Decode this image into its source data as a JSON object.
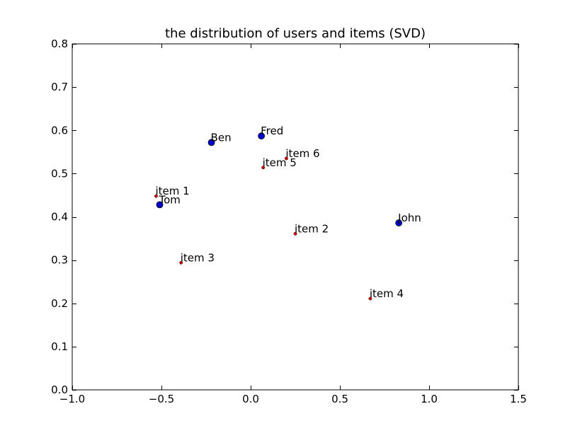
{
  "chart_data": {
    "type": "scatter",
    "title": "the distribution of users and items (SVD)",
    "xlabel": "",
    "ylabel": "",
    "xlim": [
      -1.0,
      1.5
    ],
    "ylim": [
      0.0,
      0.8
    ],
    "xticks": [
      -1.0,
      -0.5,
      0.0,
      0.5,
      1.0,
      1.5
    ],
    "xtick_labels": [
      "−1.0",
      "−0.5",
      "0.0",
      "0.5",
      "1.0",
      "1.5"
    ],
    "yticks": [
      0.0,
      0.1,
      0.2,
      0.3,
      0.4,
      0.5,
      0.6,
      0.7,
      0.8
    ],
    "ytick_labels": [
      "0.0",
      "0.1",
      "0.2",
      "0.3",
      "0.4",
      "0.5",
      "0.6",
      "0.7",
      "0.8"
    ],
    "grid": false,
    "series": [
      {
        "color": "#0000cc",
        "marker": "large-circle",
        "points": [
          {
            "label": "Ben",
            "x": -0.22,
            "y": 0.572
          },
          {
            "label": "Fred",
            "x": 0.06,
            "y": 0.587
          },
          {
            "label": "Tom",
            "x": -0.51,
            "y": 0.428
          },
          {
            "label": "John",
            "x": 0.83,
            "y": 0.386
          }
        ]
      },
      {
        "color": "#cc0000",
        "marker": "small-circle",
        "points": [
          {
            "label": "item 1",
            "x": -0.53,
            "y": 0.448
          },
          {
            "label": "item 2",
            "x": 0.25,
            "y": 0.361
          },
          {
            "label": "item 3",
            "x": -0.39,
            "y": 0.294
          },
          {
            "label": "item 4",
            "x": 0.67,
            "y": 0.211
          },
          {
            "label": "item 5",
            "x": 0.07,
            "y": 0.514
          },
          {
            "label": "item 6",
            "x": 0.2,
            "y": 0.535
          }
        ]
      }
    ]
  }
}
